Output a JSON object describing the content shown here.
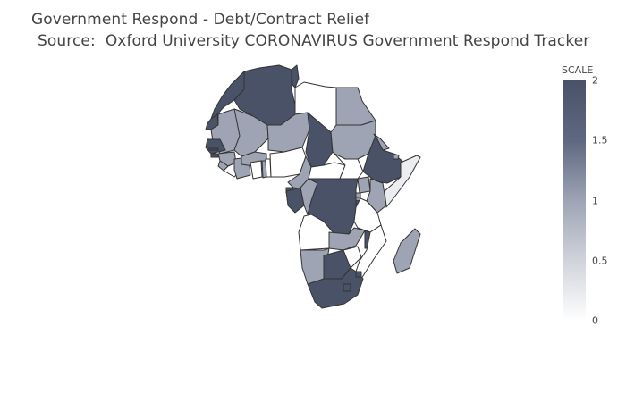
{
  "title": {
    "line1": "Government Respond - Debt/Contract Relief",
    "line2": "Source:  Oxford University CORONAVIRUS Government Respond Tracker"
  },
  "colorbar": {
    "title": "SCALE",
    "ticks": [
      "2",
      "1.5",
      "1",
      "0.5",
      "0"
    ],
    "colors": {
      "low": "#ffffff",
      "mid": "#9ea4b4",
      "high": "#4a5268"
    }
  },
  "chart_data": {
    "type": "choropleth",
    "scope": "africa",
    "colorbar_range": [
      0,
      2
    ],
    "regions": [
      {
        "name": "Morocco",
        "value": 2
      },
      {
        "name": "Algeria",
        "value": 2
      },
      {
        "name": "Tunisia",
        "value": 2
      },
      {
        "name": "Libya",
        "value": 0
      },
      {
        "name": "Egypt",
        "value": 1
      },
      {
        "name": "Western Sahara",
        "value": 2
      },
      {
        "name": "Mauritania",
        "value": 1
      },
      {
        "name": "Mali",
        "value": 1
      },
      {
        "name": "Niger",
        "value": 1
      },
      {
        "name": "Chad",
        "value": 2
      },
      {
        "name": "Sudan",
        "value": 1
      },
      {
        "name": "Eritrea",
        "value": 1
      },
      {
        "name": "Ethiopia",
        "value": 2
      },
      {
        "name": "Djibouti",
        "value": 1
      },
      {
        "name": "Somalia",
        "value": 0.2
      },
      {
        "name": "Senegal",
        "value": 2
      },
      {
        "name": "Gambia",
        "value": 2
      },
      {
        "name": "Guinea-Bissau",
        "value": 2
      },
      {
        "name": "Guinea",
        "value": 1
      },
      {
        "name": "Sierra Leone",
        "value": 1
      },
      {
        "name": "Liberia",
        "value": 0
      },
      {
        "name": "Cote d'Ivoire",
        "value": 1
      },
      {
        "name": "Burkina Faso",
        "value": 1
      },
      {
        "name": "Ghana",
        "value": 0
      },
      {
        "name": "Togo",
        "value": 1
      },
      {
        "name": "Benin",
        "value": 0
      },
      {
        "name": "Nigeria",
        "value": 0
      },
      {
        "name": "Cameroon",
        "value": 1
      },
      {
        "name": "Central African Republic",
        "value": 0
      },
      {
        "name": "South Sudan",
        "value": 0
      },
      {
        "name": "Equatorial Guinea",
        "value": 2
      },
      {
        "name": "Gabon",
        "value": 2
      },
      {
        "name": "Republic of the Congo",
        "value": 1
      },
      {
        "name": "DR Congo",
        "value": 2
      },
      {
        "name": "Uganda",
        "value": 1
      },
      {
        "name": "Kenya",
        "value": 1
      },
      {
        "name": "Rwanda",
        "value": 1
      },
      {
        "name": "Burundi",
        "value": 2
      },
      {
        "name": "Tanzania",
        "value": 0
      },
      {
        "name": "Angola",
        "value": 0
      },
      {
        "name": "Zambia",
        "value": 1
      },
      {
        "name": "Malawi",
        "value": 2
      },
      {
        "name": "Mozambique",
        "value": 0
      },
      {
        "name": "Zimbabwe",
        "value": 0
      },
      {
        "name": "Namibia",
        "value": 1
      },
      {
        "name": "Botswana",
        "value": 2
      },
      {
        "name": "South Africa",
        "value": 2
      },
      {
        "name": "Lesotho",
        "value": 2
      },
      {
        "name": "Eswatini",
        "value": 2
      },
      {
        "name": "Madagascar",
        "value": 1
      }
    ]
  }
}
